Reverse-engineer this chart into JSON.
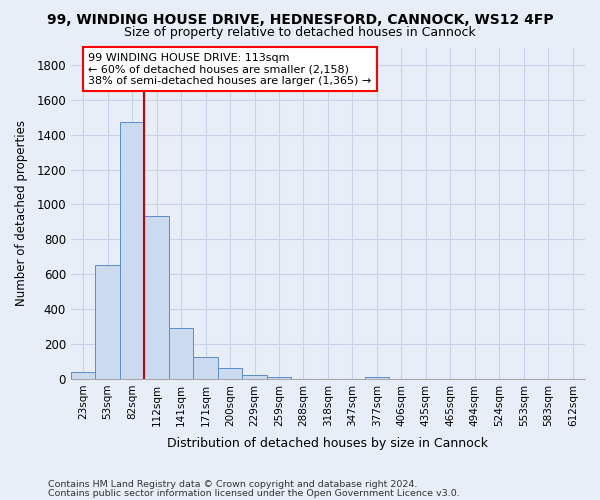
{
  "title_line1": "99, WINDING HOUSE DRIVE, HEDNESFORD, CANNOCK, WS12 4FP",
  "title_line2": "Size of property relative to detached houses in Cannock",
  "xlabel": "Distribution of detached houses by size in Cannock",
  "ylabel": "Number of detached properties",
  "footnote1": "Contains HM Land Registry data © Crown copyright and database right 2024.",
  "footnote2": "Contains public sector information licensed under the Open Government Licence v3.0.",
  "bar_labels": [
    "23sqm",
    "53sqm",
    "82sqm",
    "112sqm",
    "141sqm",
    "171sqm",
    "200sqm",
    "229sqm",
    "259sqm",
    "288sqm",
    "318sqm",
    "347sqm",
    "377sqm",
    "406sqm",
    "435sqm",
    "465sqm",
    "494sqm",
    "524sqm",
    "553sqm",
    "583sqm",
    "612sqm"
  ],
  "bar_values": [
    38,
    651,
    1474,
    935,
    291,
    127,
    63,
    22,
    13,
    0,
    0,
    0,
    13,
    0,
    0,
    0,
    0,
    0,
    0,
    0,
    0
  ],
  "bar_color": "#ccdaf0",
  "bar_edge_color": "#5b8dc8",
  "ylim": [
    0,
    1900
  ],
  "yticks": [
    0,
    200,
    400,
    600,
    800,
    1000,
    1200,
    1400,
    1600,
    1800
  ],
  "annotation_line1": "99 WINDING HOUSE DRIVE: 113sqm",
  "annotation_line2": "← 60% of detached houses are smaller (2,158)",
  "annotation_line3": "38% of semi-detached houses are larger (1,365) →",
  "vline_pos": 2.5,
  "vline_color": "#cc0000",
  "background_color": "#e8eef8",
  "grid_color": "#c8d4e8",
  "plot_bg_color": "#e8eef8"
}
